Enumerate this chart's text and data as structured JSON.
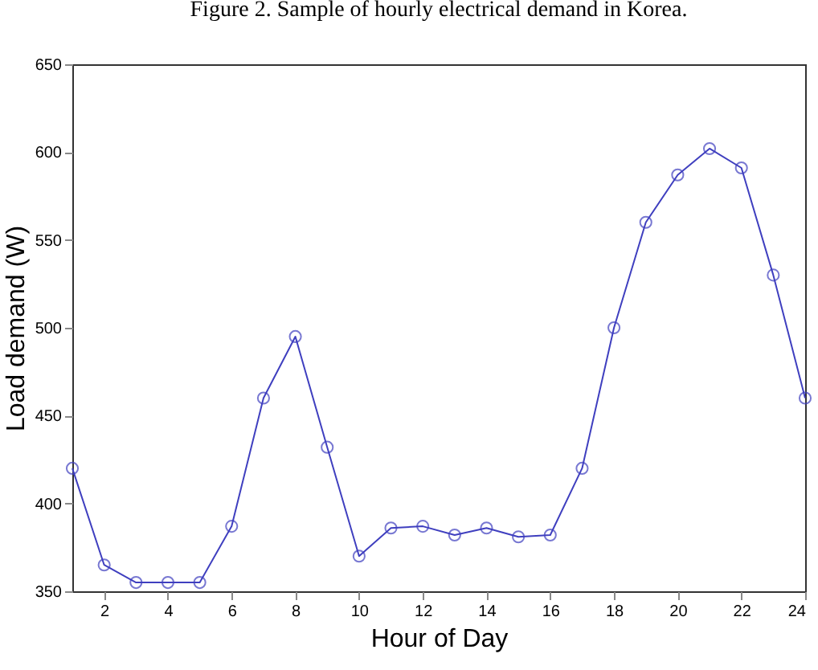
{
  "chart_data": {
    "type": "line",
    "title": "Figure 2. Sample of hourly electrical demand in Korea.",
    "xlabel": "Hour of Day",
    "ylabel": "Load demand (W)",
    "x": [
      1,
      2,
      3,
      4,
      5,
      6,
      7,
      8,
      9,
      10,
      11,
      12,
      13,
      14,
      15,
      16,
      17,
      18,
      19,
      20,
      21,
      22,
      23,
      24
    ],
    "series": [
      {
        "color": "#3f3fbf",
        "values": [
          420,
          365,
          355,
          355,
          355,
          387,
          460,
          495,
          432,
          370,
          386,
          387,
          382,
          386,
          381,
          382,
          420,
          500,
          560,
          587,
          602,
          591,
          530,
          460
        ]
      }
    ],
    "xlim": [
      1,
      24
    ],
    "xticks": [
      2,
      4,
      6,
      8,
      10,
      12,
      14,
      16,
      18,
      20,
      22,
      24
    ],
    "ylim": [
      350,
      650
    ],
    "yticks": [
      350,
      400,
      450,
      500,
      550,
      600,
      650
    ],
    "grid": false,
    "marker": "circle",
    "line_style": "solid"
  }
}
